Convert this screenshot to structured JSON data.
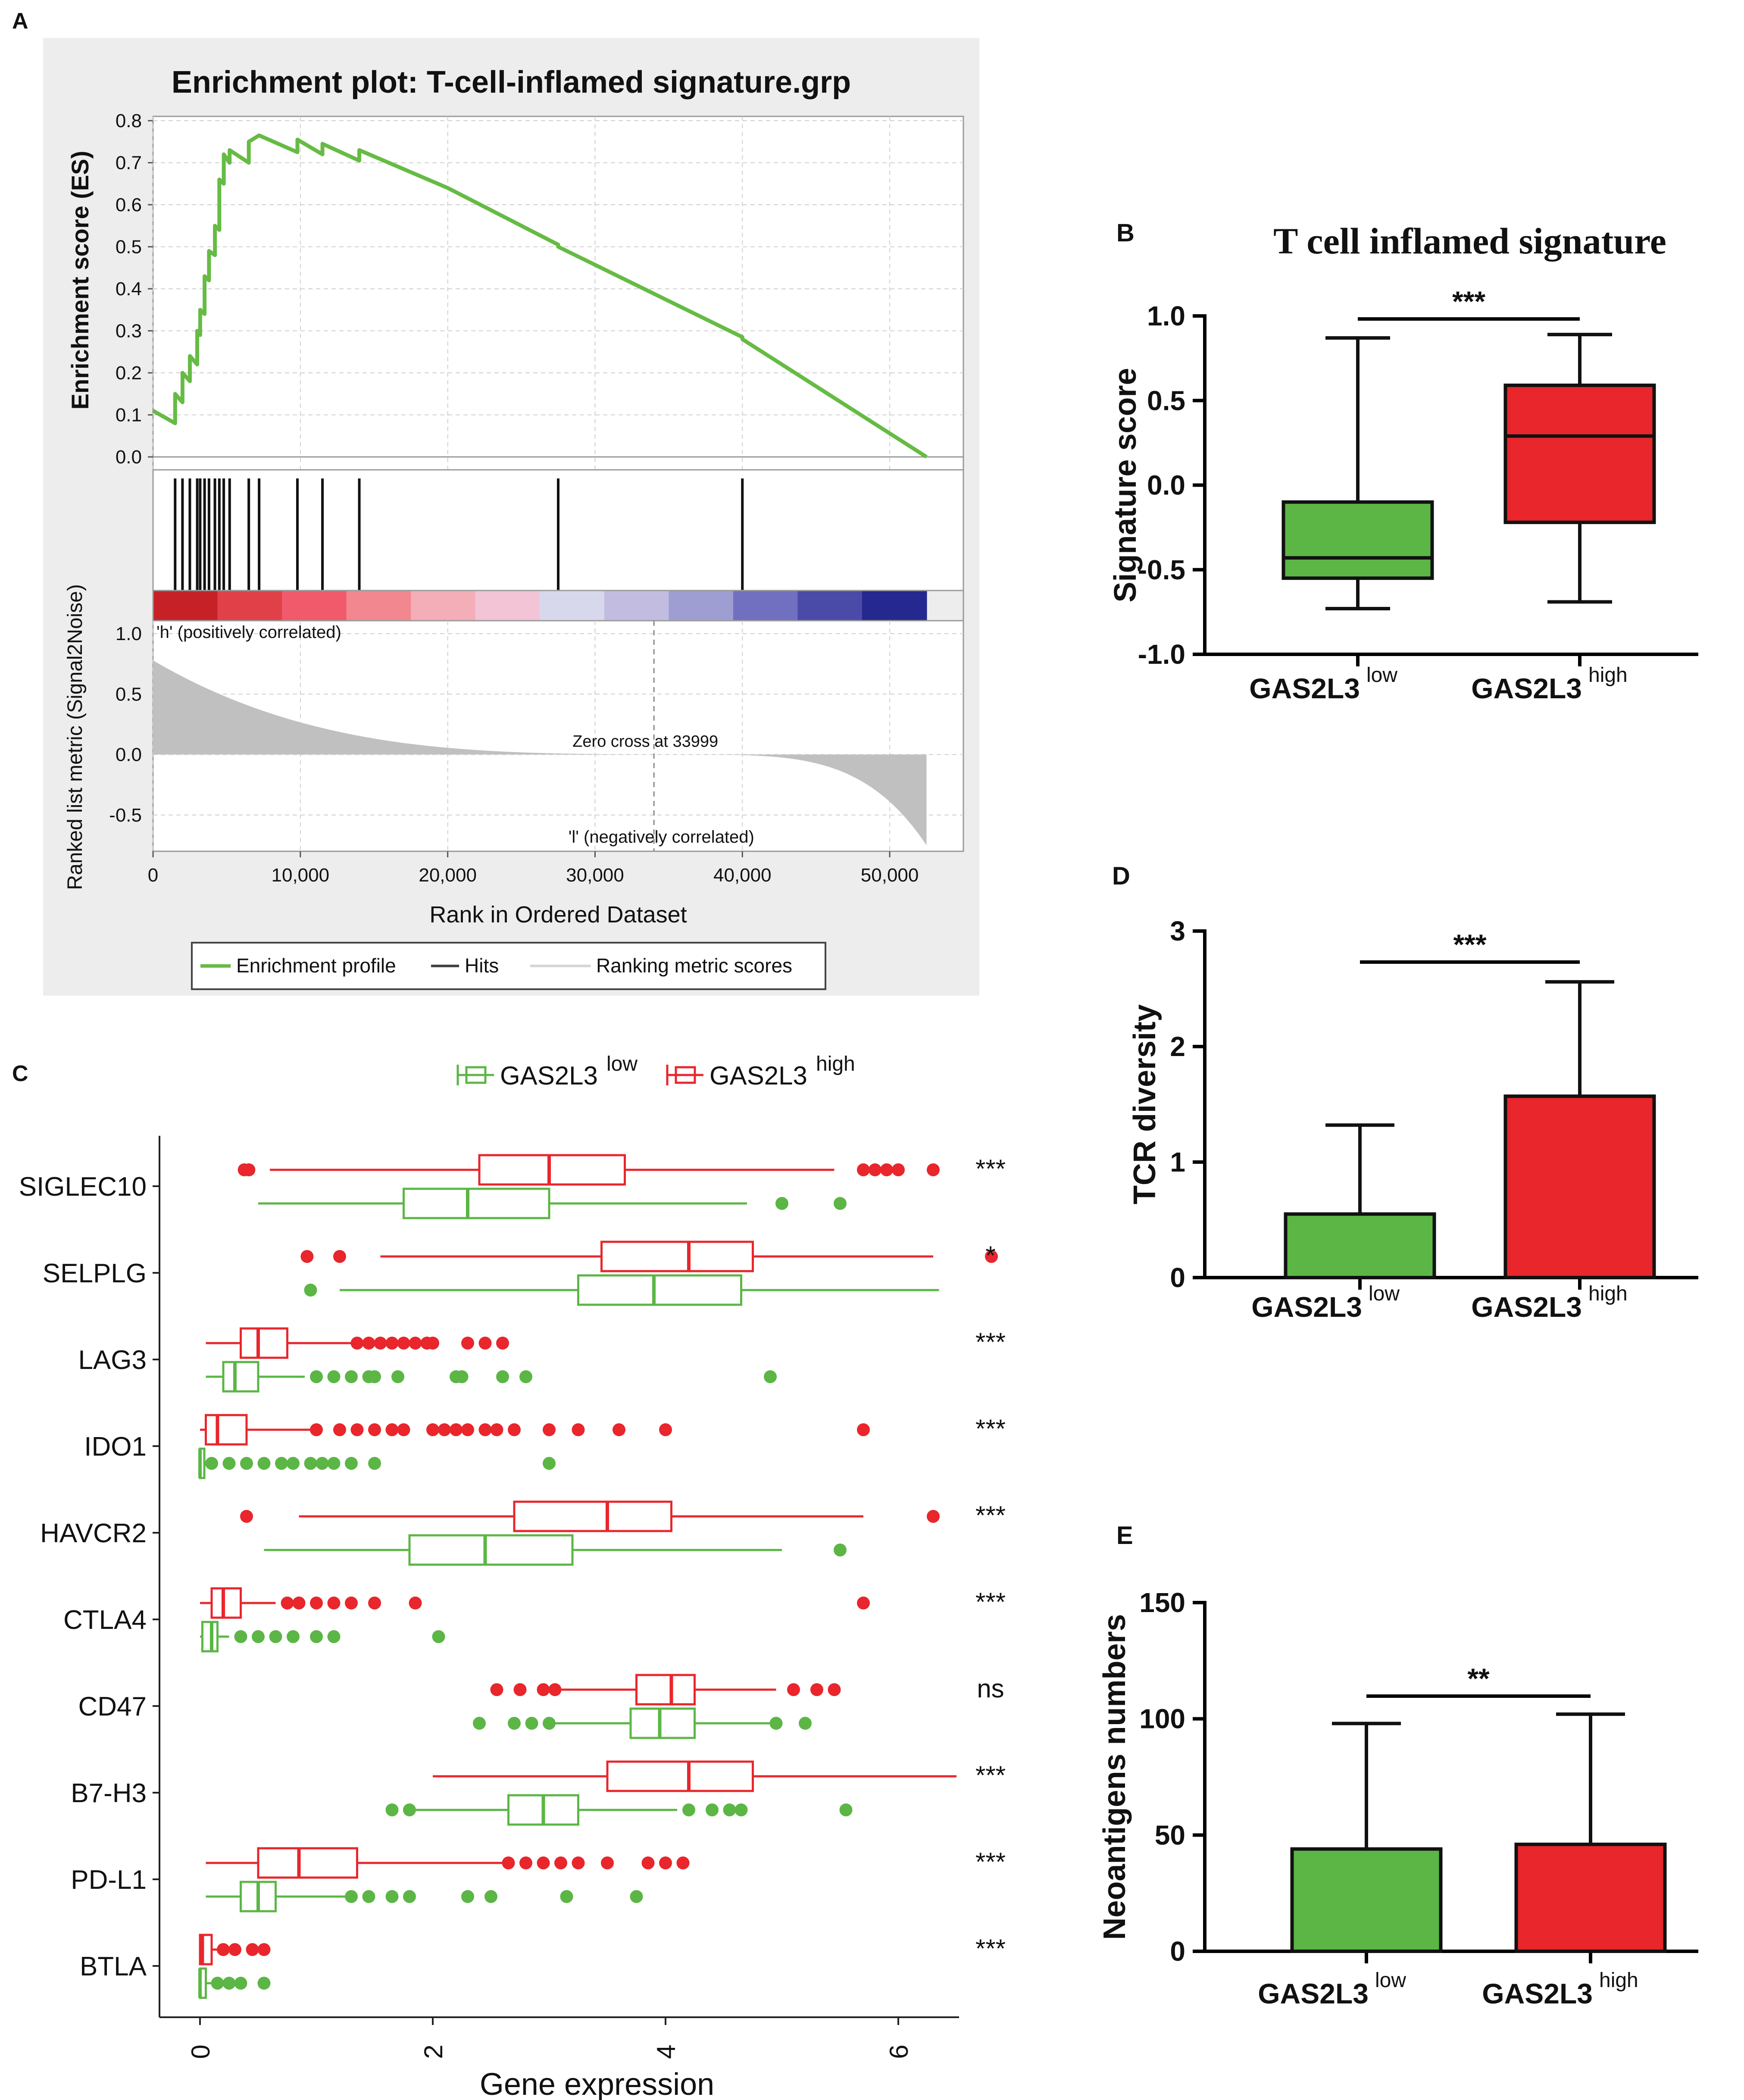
{
  "colors": {
    "low": "#5bb645",
    "high": "#e8262c",
    "gsea_line": "#66bb44",
    "gsea_bg": "#ededed",
    "metric_fill": "#c0c0c0",
    "pos_label": "#e8424d",
    "neg_label": "#5454b8"
  },
  "chart_data": [
    {
      "id": "A",
      "panel_label": "A",
      "type": "line",
      "title": "Enrichment plot: T-cell-inflamed signature.grp",
      "ylabel": "Enrichment score (ES)",
      "ylim": [
        0.0,
        0.8
      ],
      "yticks": [
        "0.0",
        "0.1",
        "0.2",
        "0.3",
        "0.4",
        "0.5",
        "0.6",
        "0.7",
        "0.8"
      ],
      "es_curve": {
        "x": [
          0,
          1500,
          1500,
          2000,
          2000,
          2500,
          2500,
          3000,
          3000,
          3200,
          3200,
          3500,
          3500,
          3800,
          3800,
          4200,
          4200,
          4500,
          4500,
          4800,
          4800,
          5200,
          5200,
          6500,
          6500,
          7200,
          7200,
          9800,
          9800,
          11500,
          11500,
          14000,
          14000,
          20000,
          27500,
          27500,
          40000,
          40000,
          52500
        ],
        "y": [
          0.11,
          0.08,
          0.15,
          0.13,
          0.2,
          0.18,
          0.24,
          0.22,
          0.3,
          0.29,
          0.35,
          0.34,
          0.43,
          0.42,
          0.49,
          0.48,
          0.55,
          0.54,
          0.66,
          0.65,
          0.72,
          0.7,
          0.73,
          0.7,
          0.75,
          0.765,
          0.765,
          0.725,
          0.755,
          0.72,
          0.745,
          0.705,
          0.73,
          0.64,
          0.505,
          0.5,
          0.285,
          0.28,
          0.0
        ]
      },
      "hits": [
        1500,
        2000,
        2500,
        3000,
        3200,
        3500,
        3800,
        4200,
        4500,
        4800,
        5200,
        6500,
        7200,
        9800,
        11500,
        14000,
        27500,
        40000
      ],
      "ranking_heat_colors": [
        "#c72128",
        "#e04148",
        "#f05a6b",
        "#f2878f",
        "#f4aeb8",
        "#f2c4d6",
        "#d8d8ec",
        "#c2bde0",
        "#9f9ed3",
        "#7170c0",
        "#4a4aa9",
        "#25288e"
      ],
      "pos_label": "'h' (positively correlated)",
      "neg_label": "'l' (negatively correlated)",
      "zero_cross_label": "Zero cross at 33999",
      "zero_cross_x": 33999,
      "metric_ylabel": "Ranked list metric (Signal2Noise)",
      "metric_ylim": [
        -0.8,
        1.0
      ],
      "metric_yticks": [
        "1.0",
        "0.5",
        "0.0",
        "-0.5"
      ],
      "xlabel": "Rank in Ordered Dataset",
      "xlim": [
        0,
        55000
      ],
      "xticks": [
        "0",
        "10,000",
        "20,000",
        "30,000",
        "40,000",
        "50,000"
      ],
      "legend": [
        "Enrichment profile",
        "Hits",
        "Ranking metric scores"
      ]
    },
    {
      "id": "B",
      "panel_label": "B",
      "type": "box",
      "title": "T cell inflamed signature",
      "ylabel": "Signature score",
      "ylim": [
        -1.0,
        1.0
      ],
      "yticks": [
        "1.0",
        "0.5",
        "0.0",
        "-0.5",
        "-1.0"
      ],
      "categories": [
        "GAS2L3",
        "GAS2L3"
      ],
      "superscripts": [
        "low",
        "high"
      ],
      "boxes": [
        {
          "group": "low",
          "min": -0.73,
          "q1": -0.55,
          "median": -0.43,
          "q3": -0.1,
          "max": 0.87
        },
        {
          "group": "high",
          "min": -0.69,
          "q1": -0.22,
          "median": 0.29,
          "q3": 0.59,
          "max": 0.89
        }
      ],
      "significance": "***"
    },
    {
      "id": "D",
      "panel_label": "D",
      "type": "bar",
      "ylabel": "TCR diversity",
      "ylim": [
        0,
        3
      ],
      "yticks": [
        "3",
        "2",
        "1",
        "0"
      ],
      "categories": [
        "GAS2L3",
        "GAS2L3"
      ],
      "superscripts": [
        "low",
        "high"
      ],
      "values": [
        0.55,
        1.57
      ],
      "error_upper": [
        1.32,
        2.56
      ],
      "significance": "***"
    },
    {
      "id": "E",
      "panel_label": "E",
      "type": "bar",
      "ylabel": "Neoantigens numbers",
      "ylim": [
        0,
        150
      ],
      "yticks": [
        "150",
        "100",
        "50",
        "0"
      ],
      "categories": [
        "GAS2L3",
        "GAS2L3"
      ],
      "superscripts": [
        "low",
        "high"
      ],
      "values": [
        44,
        46
      ],
      "error_upper": [
        98,
        102
      ],
      "significance": "**"
    },
    {
      "id": "C",
      "panel_label": "C",
      "type": "box",
      "xlabel": "Gene expression",
      "xlim": [
        -0.2,
        6.8
      ],
      "xticks": [
        "0",
        "2",
        "4",
        "6"
      ],
      "legend": [
        {
          "name": "GAS2L3",
          "sup": "low"
        },
        {
          "name": "GAS2L3",
          "sup": "high"
        }
      ],
      "genes": [
        {
          "name": "SIGLEC10",
          "sig": "***",
          "high": {
            "min": 0.6,
            "q1": 2.4,
            "median": 3.0,
            "q3": 3.65,
            "max": 5.45,
            "outliers": [
              0.38,
              0.42,
              5.7,
              5.8,
              5.9,
              6.0,
              6.3
            ]
          },
          "low": {
            "min": 0.5,
            "q1": 1.75,
            "median": 2.3,
            "q3": 3.0,
            "max": 4.7,
            "outliers": [
              5.0,
              5.5
            ]
          }
        },
        {
          "name": "SELPLG",
          "sig": "*",
          "high": {
            "min": 1.55,
            "q1": 3.45,
            "median": 4.2,
            "q3": 4.75,
            "max": 6.3,
            "outliers": [
              0.92,
              1.2,
              6.8
            ]
          },
          "low": {
            "min": 1.2,
            "q1": 3.25,
            "median": 3.9,
            "q3": 4.65,
            "max": 6.35,
            "outliers": [
              0.95
            ]
          }
        },
        {
          "name": "LAG3",
          "sig": "***",
          "high": {
            "min": 0.05,
            "q1": 0.35,
            "median": 0.5,
            "q3": 0.75,
            "max": 1.3,
            "outliers": [
              1.35,
              1.45,
              1.55,
              1.65,
              1.75,
              1.85,
              1.95,
              2.0,
              2.3,
              2.45,
              2.6
            ]
          },
          "low": {
            "min": 0.05,
            "q1": 0.2,
            "median": 0.3,
            "q3": 0.5,
            "max": 0.9,
            "outliers": [
              1.0,
              1.15,
              1.3,
              1.45,
              1.5,
              1.7,
              2.2,
              2.25,
              2.6,
              2.8,
              4.9
            ]
          }
        },
        {
          "name": "IDO1",
          "sig": "***",
          "high": {
            "min": 0.0,
            "q1": 0.05,
            "median": 0.15,
            "q3": 0.4,
            "max": 0.95,
            "outliers": [
              1.0,
              1.2,
              1.35,
              1.5,
              1.65,
              1.75,
              2.0,
              2.1,
              2.2,
              2.3,
              2.45,
              2.55,
              2.7,
              3.0,
              3.25,
              3.6,
              4.0,
              5.7
            ]
          },
          "low": {
            "min": 0.0,
            "q1": 0.0,
            "median": 0.0,
            "q3": 0.02,
            "max": 0.05,
            "outliers": [
              0.1,
              0.25,
              0.4,
              0.55,
              0.7,
              0.8,
              0.95,
              1.05,
              1.15,
              1.3,
              1.5,
              3.0
            ]
          }
        },
        {
          "name": "HAVCR2",
          "sig": "***",
          "high": {
            "min": 0.85,
            "q1": 2.7,
            "median": 3.5,
            "q3": 4.05,
            "max": 5.7,
            "outliers": [
              0.4,
              6.3
            ]
          },
          "low": {
            "min": 0.55,
            "q1": 1.8,
            "median": 2.45,
            "q3": 3.2,
            "max": 5.0,
            "outliers": [
              5.5
            ]
          }
        },
        {
          "name": "CTLA4",
          "sig": "***",
          "high": {
            "min": 0.0,
            "q1": 0.1,
            "median": 0.2,
            "q3": 0.35,
            "max": 0.65,
            "outliers": [
              0.75,
              0.85,
              1.0,
              1.15,
              1.3,
              1.5,
              1.85,
              5.7
            ]
          },
          "low": {
            "min": 0.0,
            "q1": 0.02,
            "median": 0.1,
            "q3": 0.15,
            "max": 0.25,
            "outliers": [
              0.35,
              0.5,
              0.65,
              0.8,
              1.0,
              1.15,
              2.05
            ]
          }
        },
        {
          "name": "CD47",
          "sig": "ns",
          "high": {
            "min": 3.1,
            "q1": 3.75,
            "median": 4.05,
            "q3": 4.25,
            "max": 4.95,
            "outliers": [
              2.55,
              2.75,
              2.95,
              3.05,
              5.1,
              5.3,
              5.45
            ]
          },
          "low": {
            "min": 2.95,
            "q1": 3.7,
            "median": 3.95,
            "q3": 4.25,
            "max": 5.0,
            "outliers": [
              2.4,
              2.7,
              2.85,
              3.0,
              4.95,
              5.2
            ]
          }
        },
        {
          "name": "B7-H3",
          "sig": "***",
          "high": {
            "min": 2.0,
            "q1": 3.5,
            "median": 4.2,
            "q3": 4.75,
            "max": 6.5,
            "outliers": []
          },
          "low": {
            "min": 1.8,
            "q1": 2.65,
            "median": 2.95,
            "q3": 3.25,
            "max": 4.1,
            "outliers": [
              1.65,
              1.8,
              4.2,
              4.4,
              4.55,
              4.65,
              5.55
            ]
          }
        },
        {
          "name": "PD-L1",
          "sig": "***",
          "high": {
            "min": 0.05,
            "q1": 0.5,
            "median": 0.85,
            "q3": 1.35,
            "max": 2.6,
            "outliers": [
              2.65,
              2.8,
              2.95,
              3.1,
              3.25,
              3.5,
              3.85,
              4.0,
              4.15
            ]
          },
          "low": {
            "min": 0.05,
            "q1": 0.35,
            "median": 0.5,
            "q3": 0.65,
            "max": 1.25,
            "outliers": [
              1.3,
              1.45,
              1.65,
              1.8,
              2.3,
              2.5,
              3.15,
              3.75
            ]
          }
        },
        {
          "name": "BTLA",
          "sig": "***",
          "high": {
            "min": 0.0,
            "q1": 0.0,
            "median": 0.02,
            "q3": 0.1,
            "max": 0.15,
            "outliers": [
              0.2,
              0.3,
              0.45,
              0.55
            ]
          },
          "low": {
            "min": 0.0,
            "q1": 0.0,
            "median": 0.0,
            "q3": 0.05,
            "max": 0.1,
            "outliers": [
              0.15,
              0.25,
              0.35,
              0.55
            ]
          }
        }
      ]
    }
  ]
}
